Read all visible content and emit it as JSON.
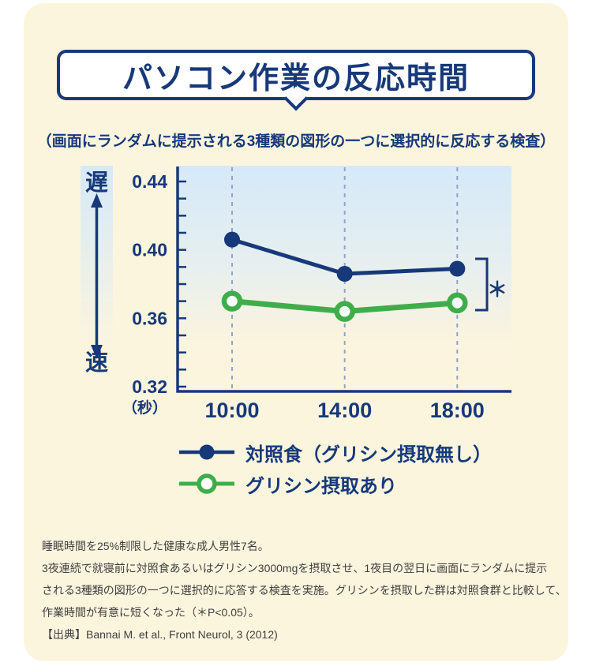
{
  "header": {
    "title": "パソコン作業の反応時間",
    "subtitle": "（画面にランダムに提示される3種類の図形の一つに選択的に反応する検査）"
  },
  "chart_data": {
    "type": "line",
    "x_categories": [
      "10:00",
      "14:00",
      "18:00"
    ],
    "series": [
      {
        "name": "対照食（グリシン摂取無し）",
        "values": [
          0.406,
          0.386,
          0.389
        ],
        "color": "#17397a",
        "marker": "filled"
      },
      {
        "name": "グリシン摂取あり",
        "values": [
          0.37,
          0.364,
          0.369
        ],
        "color": "#3fae4a",
        "marker": "open"
      }
    ],
    "yticks": [
      0.44,
      0.4,
      0.36,
      0.32
    ],
    "ylim": [
      0.32,
      0.45
    ],
    "minor_tick_step": 0.01,
    "ylabel_unit": "（秒）",
    "y_axis_annotation_top": "遅",
    "y_axis_annotation_bottom": "速",
    "significance_label": "＊",
    "significance_note": "P<0.05",
    "grid": "dashed-vertical",
    "legend_position": "bottom"
  },
  "footnote": {
    "lines": [
      "睡眠時間を25%制限した健康な成人男性7名。",
      "3夜連続で就寝前に対照食あるいはグリシン3000mgを摂取させ、1夜目の翌日に画面にランダムに提示",
      "される3種類の図形の一つに選択的に応答する検査を実施。グリシンを摂取した群は対照食群と比較して、",
      "作業時間が有意に短くなった（＊P<0.05）。",
      "【出典】Bannai M. et al., Front Neurol, 3 (2012)"
    ]
  },
  "colors": {
    "navy": "#17397a",
    "green": "#3fae4a",
    "grid_dash": "#94a2c9",
    "card_bg": "#fcf5de",
    "plot_gradient_top": "#d5e9f8",
    "white": "#ffffff",
    "footnote_text": "#3f3f3f"
  }
}
